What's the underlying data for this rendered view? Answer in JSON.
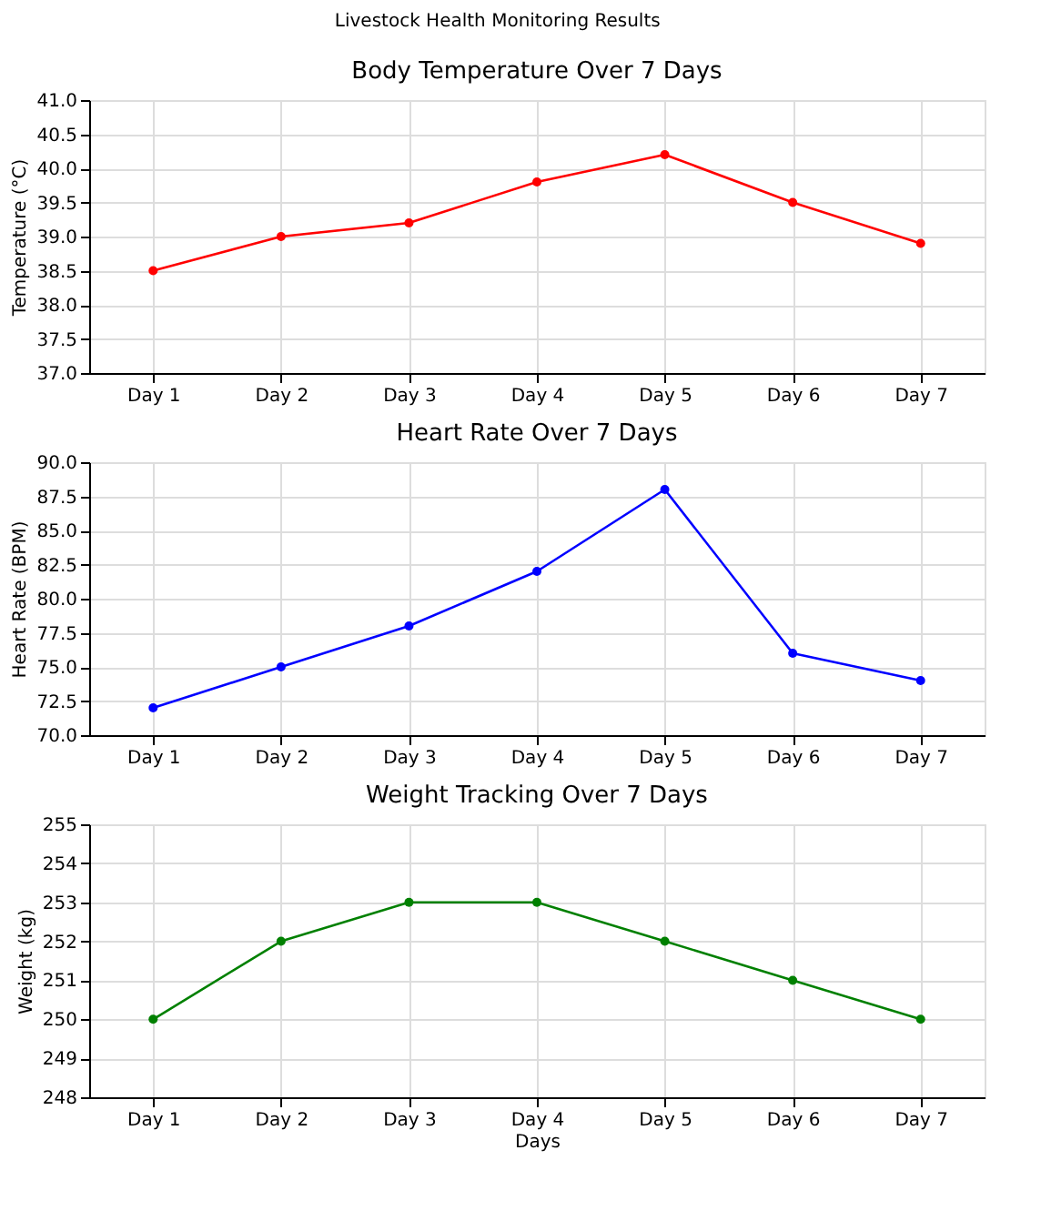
{
  "chart_data": [
    {
      "type": "line",
      "title": "Body Temperature Over 7 Days",
      "ylabel": "Temperature (°C)",
      "annotations": [
        "Livestock Health Monitoring Results"
      ],
      "categories": [
        "Day 1",
        "Day 2",
        "Day 3",
        "Day 4",
        "Day 5",
        "Day 6",
        "Day 7"
      ],
      "series": [
        {
          "color": "#ff0000",
          "values": [
            38.5,
            39.0,
            39.2,
            39.8,
            40.2,
            39.5,
            38.9
          ]
        }
      ],
      "ylim": [
        37,
        41
      ],
      "yticks": [
        {
          "value": 37,
          "label": "37.0"
        },
        37.5,
        {
          "value": 38,
          "label": "38.0"
        },
        38.5,
        {
          "value": 39,
          "label": "39.0"
        },
        39.5,
        {
          "value": 40,
          "label": "40.0"
        },
        40.5,
        {
          "value": 41,
          "label": "41.0"
        }
      ],
      "grid": true,
      "marker": "circle",
      "line_style": "solid"
    },
    {
      "type": "line",
      "title": "Heart Rate Over 7 Days",
      "ylabel": "Heart Rate (BPM)",
      "categories": [
        "Day 1",
        "Day 2",
        "Day 3",
        "Day 4",
        "Day 5",
        "Day 6",
        "Day 7"
      ],
      "series": [
        {
          "color": "#0000ff",
          "values": [
            72,
            75,
            78,
            82,
            88,
            76,
            74
          ]
        }
      ],
      "ylim": [
        70,
        90
      ],
      "yticks": [
        {
          "value": 70,
          "label": "70.0"
        },
        72.5,
        {
          "value": 75,
          "label": "75.0"
        },
        77.5,
        {
          "value": 80,
          "label": "80.0"
        },
        82.5,
        {
          "value": 85,
          "label": "85.0"
        },
        87.5,
        {
          "value": 90,
          "label": "90.0"
        }
      ],
      "grid": true,
      "marker": "circle",
      "line_style": "solid"
    },
    {
      "type": "line",
      "title": "Weight Tracking Over 7 Days",
      "xlabel": "Days",
      "ylabel": "Weight (kg)",
      "categories": [
        "Day 1",
        "Day 2",
        "Day 3",
        "Day 4",
        "Day 5",
        "Day 6",
        "Day 7"
      ],
      "series": [
        {
          "color": "#008000",
          "values": [
            250,
            252,
            253,
            253,
            252,
            251,
            250
          ]
        }
      ],
      "ylim": [
        248,
        255
      ],
      "yticks": [
        248,
        249,
        250,
        251,
        252,
        253,
        254,
        255
      ],
      "grid": true,
      "marker": "circle",
      "line_style": "solid"
    }
  ]
}
